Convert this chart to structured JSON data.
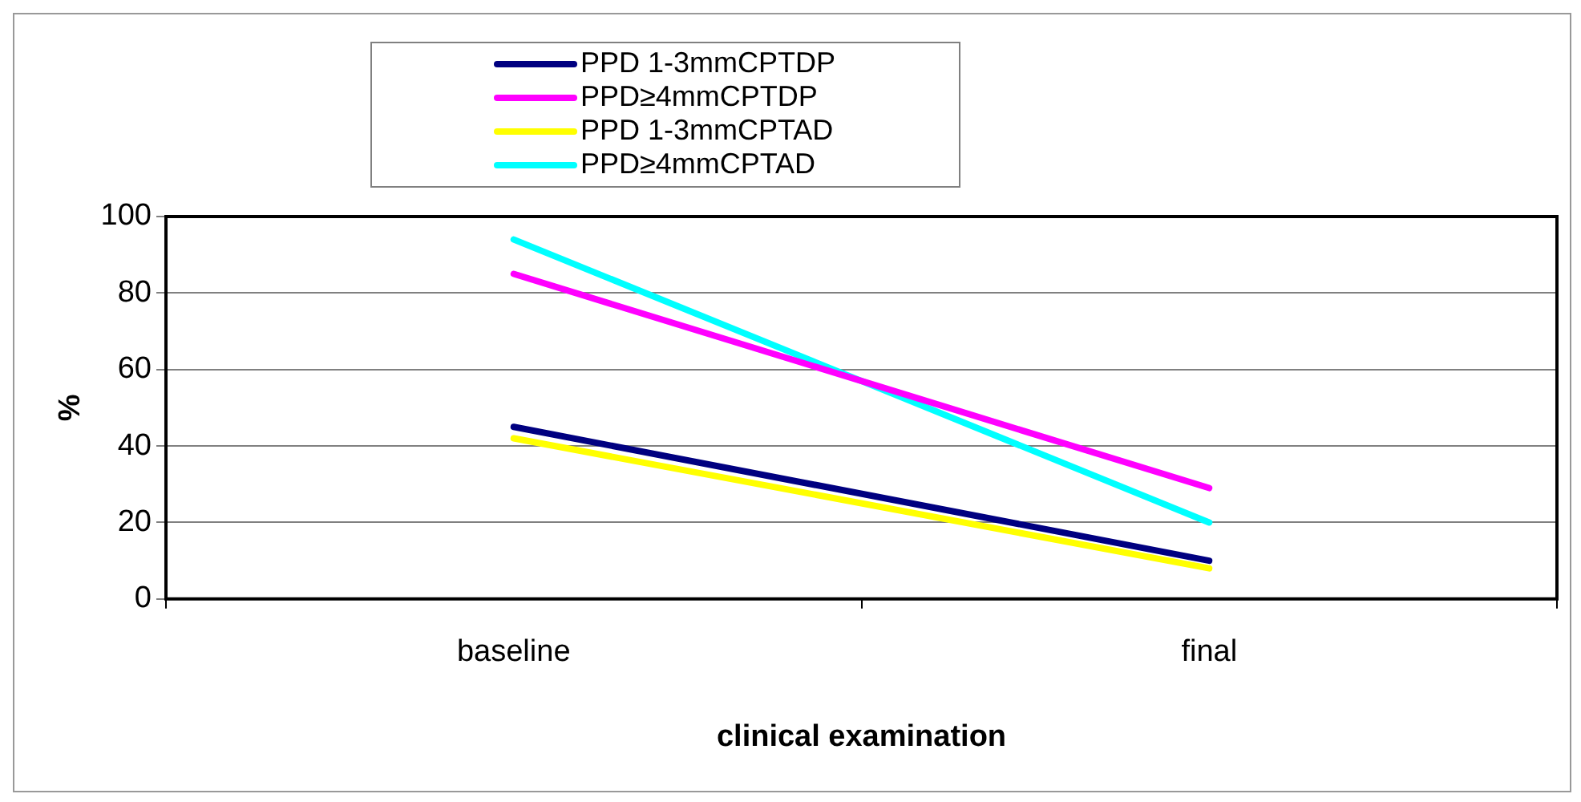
{
  "chart_data": {
    "type": "line",
    "xlabel": "clinical examination",
    "ylabel": "%",
    "categories": [
      "baseline",
      "final"
    ],
    "series": [
      {
        "name": "PPD 1-3mmCPTDP",
        "color": "#000080",
        "values": [
          45,
          10
        ]
      },
      {
        "name": "PPD≥4mmCPTDP",
        "color": "#ff00ff",
        "values": [
          85,
          29
        ]
      },
      {
        "name": "PPD 1-3mmCPTAD",
        "color": "#ffff00",
        "values": [
          42,
          8
        ]
      },
      {
        "name": "PPD≥4mmCPTAD",
        "color": "#00ffff",
        "values": [
          94,
          20
        ]
      }
    ],
    "ylim": [
      0,
      100
    ],
    "yticks": [
      0,
      20,
      40,
      60,
      80,
      100
    ],
    "grid": "y",
    "legend": "top",
    "marker": "none",
    "line_style": "solid"
  }
}
